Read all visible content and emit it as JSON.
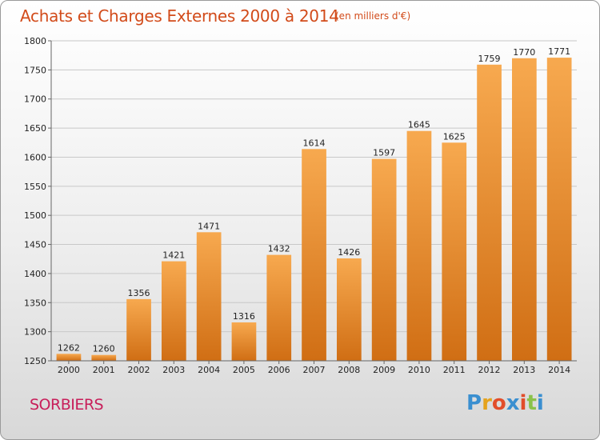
{
  "header": {
    "title": "Achats et Charges Externes 2000 à 2014",
    "subtitle": "(en milliers d'€)"
  },
  "footer": {
    "commune": "SORBIERS",
    "logo": {
      "text": "Proxiti",
      "letters": [
        "P",
        "r",
        "o",
        "x",
        "i",
        "t",
        "i"
      ],
      "letter_colors": [
        "#3a8fd0",
        "#e5a31e",
        "#e24d2a",
        "#3a8fd0",
        "#e24d2a",
        "#8ac24a",
        "#3a8fd0"
      ]
    }
  },
  "colors": {
    "title": "#d24b1a",
    "commune": "#c81e5a",
    "bar_light": "#f7a94f",
    "bar_dark": "#d06e14",
    "grid": "#c8c8c8"
  },
  "chart_data": {
    "type": "bar",
    "title": "Achats et Charges Externes 2000 à 2014",
    "subtitle": "(en milliers d'€)",
    "xlabel": "",
    "ylabel": "",
    "categories": [
      "2000",
      "2001",
      "2002",
      "2003",
      "2004",
      "2005",
      "2006",
      "2007",
      "2008",
      "2009",
      "2010",
      "2011",
      "2012",
      "2013",
      "2014"
    ],
    "values": [
      1262,
      1260,
      1356,
      1421,
      1471,
      1316,
      1432,
      1614,
      1426,
      1597,
      1645,
      1625,
      1759,
      1770,
      1771
    ],
    "ylim": [
      1250,
      1800
    ],
    "yticks": [
      1250,
      1300,
      1350,
      1400,
      1450,
      1500,
      1550,
      1600,
      1650,
      1700,
      1750,
      1800
    ],
    "grid": true,
    "data_labels": true
  }
}
